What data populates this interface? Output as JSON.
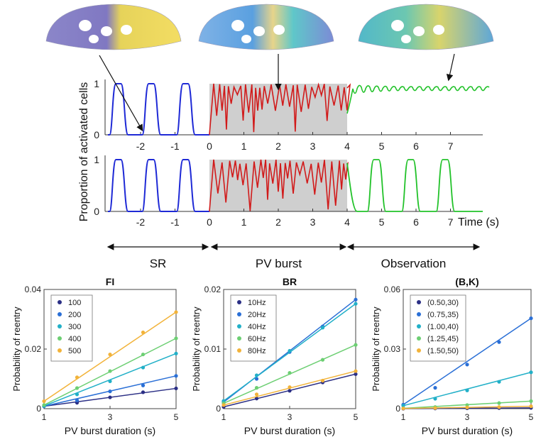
{
  "colors": {
    "sr": "#1f2ad6",
    "burst": "#d11a1a",
    "observation": "#22c22a",
    "shade": "#cfcfcf",
    "axis": "#333333"
  },
  "icons": [
    "heart-mesh-sr-thumbnail",
    "heart-mesh-burst-thumbnail",
    "heart-mesh-observation-thumbnail"
  ],
  "timeline": {
    "ylabel": "Proportion of activated cells",
    "xlabel": "Time (s)",
    "x_ticks": [
      "-2",
      "-1",
      "0",
      "1",
      "2",
      "3",
      "4",
      "5",
      "6",
      "7"
    ],
    "y_ticks": [
      "0",
      "1"
    ],
    "phases": [
      "SR",
      "PV burst",
      "Observation"
    ]
  },
  "chart_data": [
    {
      "type": "line",
      "title": "FI",
      "xlabel": "PV burst duration (s)",
      "ylabel": "Probability of reentry",
      "xlim": [
        1,
        5
      ],
      "ylim": [
        0,
        0.04
      ],
      "x_ticks": [
        "1",
        "3",
        "5"
      ],
      "y_ticks": [
        "0",
        "0.02",
        "0.04"
      ],
      "x": [
        1,
        2,
        3,
        4,
        5
      ],
      "legend_position": "top-left",
      "series": [
        {
          "name": "100",
          "color": "#2b2f85",
          "values": [
            0.0008,
            0.002,
            0.0038,
            0.0055,
            0.0068
          ]
        },
        {
          "name": "200",
          "color": "#2a6fd6",
          "values": [
            0.0008,
            0.0028,
            0.0058,
            0.0078,
            0.011
          ]
        },
        {
          "name": "300",
          "color": "#22b0c8",
          "values": [
            0.0009,
            0.0048,
            0.0092,
            0.0138,
            0.0185
          ]
        },
        {
          "name": "400",
          "color": "#6dcf73",
          "values": [
            0.0012,
            0.0069,
            0.0126,
            0.0182,
            0.0236
          ]
        },
        {
          "name": "500",
          "color": "#f2b33a",
          "values": [
            0.0025,
            0.0105,
            0.0182,
            0.0256,
            0.0324
          ]
        }
      ]
    },
    {
      "type": "line",
      "title": "BR",
      "xlabel": "PV burst duration (s)",
      "ylabel": "Probability of reentry",
      "xlim": [
        1,
        5
      ],
      "ylim": [
        0,
        0.02
      ],
      "x_ticks": [
        "1",
        "3",
        "5"
      ],
      "y_ticks": [
        "0",
        "0.01",
        "0.02"
      ],
      "x": [
        1,
        2,
        3,
        4,
        5
      ],
      "legend_position": "top-left",
      "series": [
        {
          "name": "10Hz",
          "color": "#2b2f85",
          "values": [
            0.0003,
            0.0017,
            0.003,
            0.0044,
            0.0058
          ]
        },
        {
          "name": "20Hz",
          "color": "#2a6fd6",
          "values": [
            0.0011,
            0.005,
            0.0095,
            0.0138,
            0.0183
          ]
        },
        {
          "name": "40Hz",
          "color": "#22b0c8",
          "values": [
            0.0013,
            0.0056,
            0.0097,
            0.0136,
            0.0176
          ]
        },
        {
          "name": "60Hz",
          "color": "#6dcf73",
          "values": [
            0.0009,
            0.0035,
            0.006,
            0.0082,
            0.0107
          ]
        },
        {
          "name": "80Hz",
          "color": "#f2b33a",
          "values": [
            0.0006,
            0.0024,
            0.0036,
            0.0047,
            0.0063
          ]
        }
      ]
    },
    {
      "type": "line",
      "title": "(B,K)",
      "xlabel": "PV burst duration (s)",
      "ylabel": "Probability of reentry",
      "xlim": [
        1,
        5
      ],
      "ylim": [
        0,
        0.06
      ],
      "x_ticks": [
        "1",
        "3",
        "5"
      ],
      "y_ticks": [
        "0",
        "0.03",
        "0.06"
      ],
      "x": [
        1,
        2,
        3,
        4,
        5
      ],
      "legend_position": "top-left",
      "series": [
        {
          "name": "(0.50,30)",
          "color": "#2b2f85",
          "values": [
            0.0,
            0.0001,
            0.0002,
            0.0003,
            0.0004
          ]
        },
        {
          "name": "(0.75,35)",
          "color": "#2a6fd6",
          "values": [
            0.002,
            0.0105,
            0.0222,
            0.0335,
            0.0455
          ]
        },
        {
          "name": "(1.00,40)",
          "color": "#22b0c8",
          "values": [
            0.0015,
            0.005,
            0.0092,
            0.0135,
            0.0183
          ]
        },
        {
          "name": "(1.25,45)",
          "color": "#6dcf73",
          "values": [
            0.0002,
            0.0008,
            0.0018,
            0.0028,
            0.0038
          ]
        },
        {
          "name": "(1.50,50)",
          "color": "#f2b33a",
          "values": [
            0.0001,
            0.0003,
            0.0006,
            0.0008,
            0.0012
          ]
        }
      ]
    }
  ]
}
